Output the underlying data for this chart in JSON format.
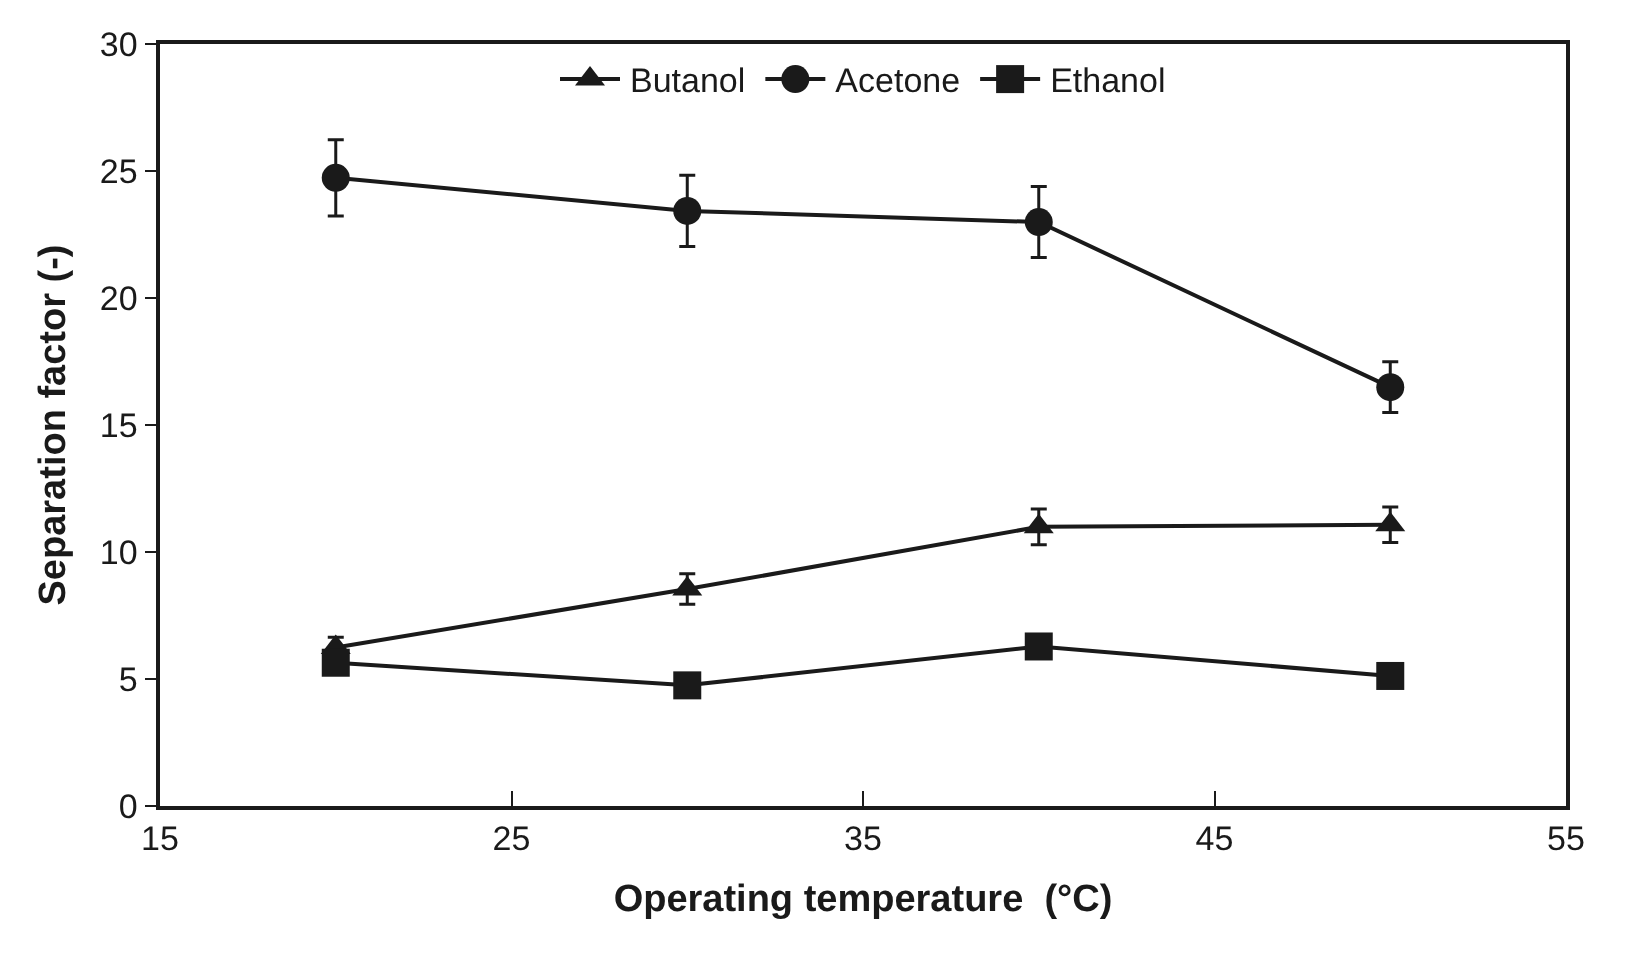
{
  "chart_data": {
    "type": "line",
    "xlabel": "Operating temperature  (°C)",
    "ylabel": "Separation factor (-)",
    "x": [
      20,
      30,
      40,
      50
    ],
    "xlim": [
      15,
      55
    ],
    "xticks": [
      15,
      25,
      35,
      45,
      55
    ],
    "ylim": [
      0,
      30
    ],
    "yticks": [
      0,
      5,
      10,
      15,
      20,
      25,
      30
    ],
    "grid": false,
    "legend": "top",
    "line_style": "solid",
    "series": [
      {
        "name": "Butanol",
        "color": "#1a1a1a",
        "marker": "triangle",
        "values": [
          6.24,
          8.54,
          10.99,
          11.07
        ],
        "errors": [
          0.4,
          0.6,
          0.7,
          0.7
        ]
      },
      {
        "name": "Acetone",
        "color": "#1a1a1a",
        "marker": "circle",
        "values": [
          24.73,
          23.43,
          22.99,
          16.49
        ],
        "errors": [
          1.5,
          1.4,
          1.4,
          1.0
        ]
      },
      {
        "name": "Ethanol",
        "color": "#1a1a1a",
        "marker": "square",
        "values": [
          5.64,
          4.75,
          6.28,
          5.12
        ]
      }
    ]
  }
}
